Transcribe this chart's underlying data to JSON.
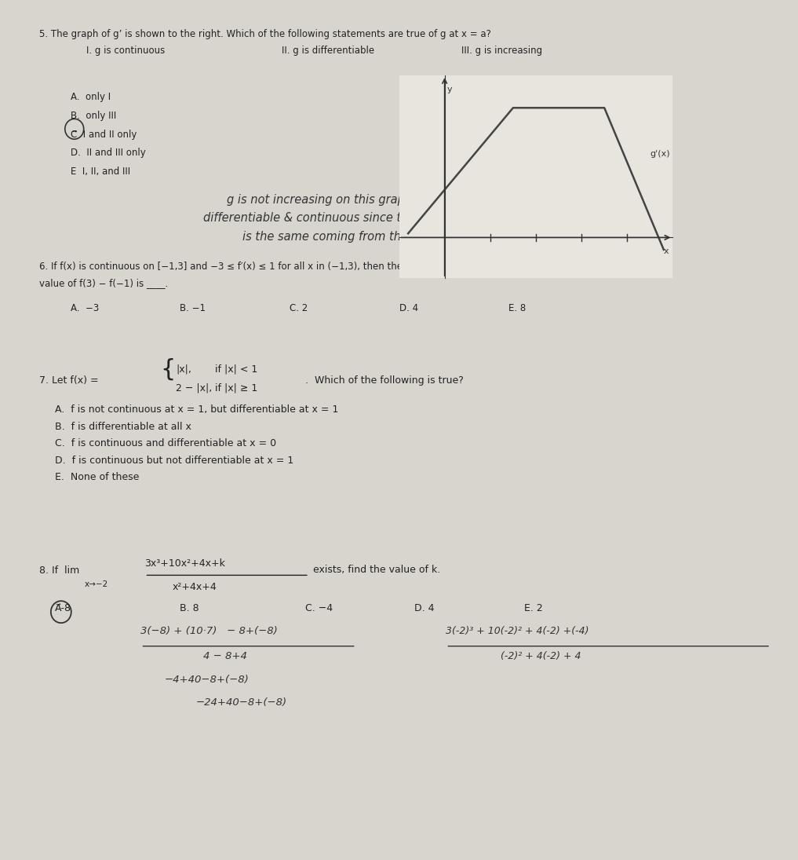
{
  "bg_color": "#d8d5ce",
  "paper_color": "#e8e5de",
  "title_q5": "5. The graph of g’ is shown to the right. Which of the following statements are true of g at x = a?",
  "q5_parts": [
    "I. g is continuous",
    "II. g is differentiable",
    "III. g is increasing"
  ],
  "q5_choices": [
    "A.  only I",
    "B.  only III",
    "C⃗  I and II only",
    "D.  II and III only",
    "E  I, II, and III"
  ],
  "handwritten1": [
    "g is not increasing on this graph but it is",
    "differentiable & continuous since the limit",
    "is the same coming from the left/right"
  ],
  "q6_text1": "6. If f(x) is continuous on [−1,3] and −3 ≤ f′(x) ≤ 1 for all x in (−1,3), then the greatest possible",
  "q6_text2": "value of f(3) − f(−1) is ____.",
  "q6_choices": [
    "A.  −3",
    "B. −1",
    "C. 2",
    "D. 4",
    "E. 8"
  ],
  "q7_text": "7. Let f(x) = {|x|,  if |x| < 1;  2 − |x|,  if |x| ≥ 1}.  Which of the following is true?",
  "q7_choices": [
    "A.  f is not continuous at x = 1, but differentiable at x = 1",
    "B.  f is differentiable at all x",
    "C.  f is continuous and differentiable at x = 0",
    "D.  f is continuous but not differentiable at x = 1",
    "E.  None of these"
  ],
  "q8_text1": "8. If lim",
  "q8_limit": "x→−2",
  "q8_fraction_num": "3x³+10x²+4x+k",
  "q8_fraction_den": "x²+4x+4",
  "q8_text2": "exists, find the value of k.",
  "q8_choices": [
    "A⃗-8",
    "B. 8",
    "C. −4",
    "D. 4",
    "E. 2"
  ],
  "hw2_line1": "3(-8) + (10·7) − 8+(-8)",
  "hw2_line2": "4 − 8+4",
  "hw2_line3": "−4+40−8+(−8)",
  "hw2_rhs1": "3(-2)³ + 10(-2)² + 4(-2) +(-4)",
  "hw2_rhs2": "(-2)² + 4(-2) + 4"
}
